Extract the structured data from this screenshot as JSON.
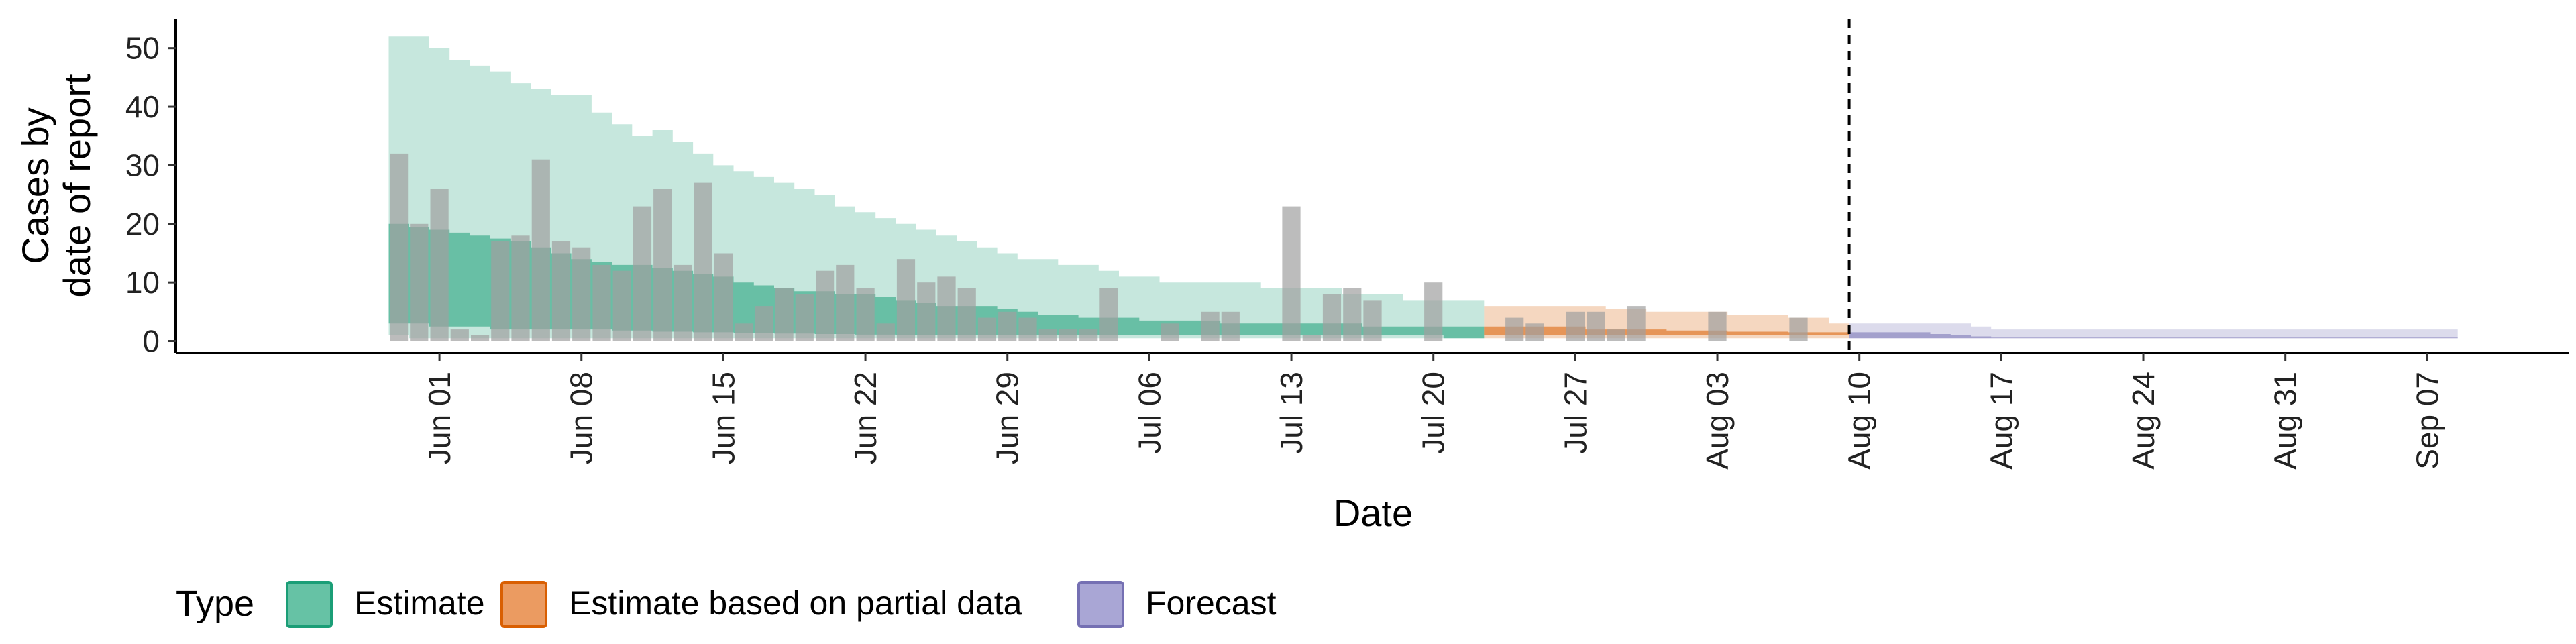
{
  "chart_data": {
    "type": "bar",
    "xlabel": "Date",
    "ylabel_lines": [
      "Cases by",
      "date of report"
    ],
    "y_ticks": [
      0,
      10,
      20,
      30,
      40,
      50
    ],
    "ylim": [
      -2,
      55
    ],
    "xlim": [
      "2020-05-19",
      "2020-09-14"
    ],
    "x_ticks": [
      {
        "date": "2020-06-01",
        "label": "Jun 01"
      },
      {
        "date": "2020-06-08",
        "label": "Jun 08"
      },
      {
        "date": "2020-06-15",
        "label": "Jun 15"
      },
      {
        "date": "2020-06-22",
        "label": "Jun 22"
      },
      {
        "date": "2020-06-29",
        "label": "Jun 29"
      },
      {
        "date": "2020-07-06",
        "label": "Jul 06"
      },
      {
        "date": "2020-07-13",
        "label": "Jul 13"
      },
      {
        "date": "2020-07-20",
        "label": "Jul 20"
      },
      {
        "date": "2020-07-27",
        "label": "Jul 27"
      },
      {
        "date": "2020-08-03",
        "label": "Aug 03"
      },
      {
        "date": "2020-08-10",
        "label": "Aug 10"
      },
      {
        "date": "2020-08-17",
        "label": "Aug 17"
      },
      {
        "date": "2020-08-24",
        "label": "Aug 24"
      },
      {
        "date": "2020-08-31",
        "label": "Aug 31"
      },
      {
        "date": "2020-09-07",
        "label": "Sep 07"
      }
    ],
    "forecast_date_line": "2020-08-09",
    "reported_cases": {
      "dates": [
        "2020-05-30",
        "2020-05-31",
        "2020-06-01",
        "2020-06-02",
        "2020-06-03",
        "2020-06-04",
        "2020-06-05",
        "2020-06-06",
        "2020-06-07",
        "2020-06-08",
        "2020-06-09",
        "2020-06-10",
        "2020-06-11",
        "2020-06-12",
        "2020-06-13",
        "2020-06-14",
        "2020-06-15",
        "2020-06-16",
        "2020-06-17",
        "2020-06-18",
        "2020-06-19",
        "2020-06-20",
        "2020-06-21",
        "2020-06-22",
        "2020-06-23",
        "2020-06-24",
        "2020-06-25",
        "2020-06-26",
        "2020-06-27",
        "2020-06-28",
        "2020-06-29",
        "2020-06-30",
        "2020-07-01",
        "2020-07-02",
        "2020-07-03",
        "2020-07-04",
        "2020-07-05",
        "2020-07-06",
        "2020-07-07",
        "2020-07-08",
        "2020-07-09",
        "2020-07-10",
        "2020-07-11",
        "2020-07-12",
        "2020-07-13",
        "2020-07-14",
        "2020-07-15",
        "2020-07-16",
        "2020-07-17",
        "2020-07-18",
        "2020-07-19",
        "2020-07-20",
        "2020-07-21",
        "2020-07-22",
        "2020-07-23",
        "2020-07-24",
        "2020-07-25",
        "2020-07-26",
        "2020-07-27",
        "2020-07-28",
        "2020-07-29",
        "2020-07-30",
        "2020-07-31",
        "2020-08-01",
        "2020-08-02",
        "2020-08-03",
        "2020-08-04",
        "2020-08-05",
        "2020-08-06",
        "2020-08-07",
        "2020-08-08"
      ],
      "values": [
        32,
        20,
        26,
        2,
        1,
        17,
        18,
        31,
        17,
        16,
        13,
        12,
        23,
        26,
        13,
        27,
        15,
        3,
        6,
        9,
        8,
        12,
        13,
        9,
        3,
        14,
        10,
        11,
        9,
        4,
        5,
        4,
        2,
        2,
        2,
        9,
        0,
        0,
        3,
        0,
        5,
        5,
        0,
        0,
        23,
        1,
        8,
        9,
        7,
        0,
        0,
        10,
        0,
        0,
        0,
        4,
        3,
        0,
        5,
        5,
        2,
        6,
        0,
        0,
        0,
        5,
        0,
        0,
        0,
        4,
        0
      ]
    },
    "series": [
      {
        "name": "Estimate",
        "color": "#1B9E77",
        "dates": [
          "2020-05-30",
          "2020-05-31",
          "2020-06-01",
          "2020-06-02",
          "2020-06-03",
          "2020-06-04",
          "2020-06-05",
          "2020-06-06",
          "2020-06-07",
          "2020-06-08",
          "2020-06-09",
          "2020-06-10",
          "2020-06-11",
          "2020-06-12",
          "2020-06-13",
          "2020-06-14",
          "2020-06-15",
          "2020-06-16",
          "2020-06-17",
          "2020-06-18",
          "2020-06-19",
          "2020-06-20",
          "2020-06-21",
          "2020-06-22",
          "2020-06-23",
          "2020-06-24",
          "2020-06-25",
          "2020-06-26",
          "2020-06-27",
          "2020-06-28",
          "2020-06-29",
          "2020-06-30",
          "2020-07-01",
          "2020-07-02",
          "2020-07-03",
          "2020-07-04",
          "2020-07-05",
          "2020-07-06",
          "2020-07-07",
          "2020-07-08",
          "2020-07-09",
          "2020-07-10",
          "2020-07-11",
          "2020-07-12",
          "2020-07-13",
          "2020-07-14",
          "2020-07-15",
          "2020-07-16",
          "2020-07-17",
          "2020-07-18",
          "2020-07-19",
          "2020-07-20",
          "2020-07-21",
          "2020-07-22"
        ],
        "upper_90": [
          52,
          52,
          50,
          48,
          47,
          46,
          44,
          43,
          42,
          42,
          39,
          37,
          35,
          36,
          34,
          32,
          30,
          29,
          28,
          27,
          26,
          25,
          23,
          22,
          21,
          20,
          19,
          18,
          17,
          16,
          15,
          14,
          14,
          13,
          13,
          12,
          11,
          11,
          10,
          10,
          10,
          10,
          10,
          9,
          9,
          9,
          9,
          8,
          8,
          8,
          7,
          7,
          7,
          7
        ],
        "lower_90": [
          1,
          0.5,
          0.5,
          0.5,
          0.5,
          0.5,
          0.5,
          0.5,
          0.5,
          0.5,
          0.5,
          0.5,
          0.5,
          0.5,
          0.5,
          0.5,
          0.5,
          0.5,
          0.5,
          0.5,
          0.5,
          0.5,
          0.5,
          0.5,
          0.5,
          0.5,
          0.5,
          0.5,
          0.5,
          0.5,
          0.5,
          0.5,
          0.5,
          0.5,
          0.5,
          0.5,
          0.5,
          0.5,
          0.5,
          0.5,
          0.5,
          0.5,
          0.5,
          0.5,
          0.5,
          0.5,
          0.5,
          0.5,
          0.5,
          0.5,
          0.5,
          0.5,
          0.5,
          0.5
        ],
        "upper_50": [
          20,
          19.5,
          19,
          18.5,
          18,
          17.5,
          17,
          16,
          15,
          14,
          13.5,
          13,
          13,
          12.5,
          12,
          11.5,
          11,
          10,
          9.5,
          9,
          8.5,
          8.5,
          8,
          8,
          7.5,
          7,
          6.5,
          6,
          6,
          6,
          5.5,
          5,
          4.5,
          4.5,
          4,
          4,
          4,
          3.5,
          3.5,
          3.5,
          3.5,
          3,
          3,
          3,
          3,
          3,
          3,
          3,
          2.5,
          2.5,
          2.5,
          2.5,
          2.5,
          2.5
        ],
        "lower_50": [
          3,
          3,
          2.5,
          2.5,
          2.5,
          2,
          2,
          2,
          2,
          2,
          2,
          1.8,
          1.8,
          1.6,
          1.6,
          1.5,
          1.5,
          1.4,
          1.4,
          1.3,
          1.3,
          1.2,
          1.2,
          1.1,
          1.1,
          1,
          1,
          1,
          1,
          1,
          1,
          1,
          1,
          1,
          1,
          1,
          1,
          1,
          1,
          1,
          1,
          1,
          1,
          1,
          1,
          1,
          1,
          1,
          1,
          1,
          1,
          1,
          0.5,
          0.5
        ]
      },
      {
        "name": "Estimate based on partial data",
        "color": "#D95F02",
        "dates": [
          "2020-07-23",
          "2020-07-24",
          "2020-07-25",
          "2020-07-26",
          "2020-07-27",
          "2020-07-28",
          "2020-07-29",
          "2020-07-30",
          "2020-07-31",
          "2020-08-01",
          "2020-08-02",
          "2020-08-03",
          "2020-08-04",
          "2020-08-05",
          "2020-08-06",
          "2020-08-07",
          "2020-08-08",
          "2020-08-09"
        ],
        "upper_90": [
          6,
          6,
          6,
          6,
          6,
          6,
          5.5,
          5.5,
          5,
          5,
          5,
          5,
          4.5,
          4.5,
          4.5,
          4,
          4,
          3
        ],
        "lower_90": [
          0.5,
          0.5,
          0.5,
          0.5,
          0.5,
          0.5,
          0.5,
          0.5,
          0.5,
          0.5,
          0.5,
          0.5,
          0.5,
          0.5,
          0.5,
          0.5,
          0.5,
          0.5
        ],
        "upper_50": [
          2.5,
          2.5,
          2.5,
          2.5,
          2.5,
          2,
          2,
          2,
          2,
          1.8,
          1.8,
          1.8,
          1.6,
          1.6,
          1.6,
          1.5,
          1.5,
          1.5
        ],
        "lower_50": [
          1,
          1,
          1,
          1,
          1,
          1,
          1,
          1,
          1,
          1,
          1,
          1,
          1,
          1,
          1,
          1,
          1,
          1
        ]
      },
      {
        "name": "Forecast",
        "color": "#7570B3",
        "dates": [
          "2020-08-10",
          "2020-08-11",
          "2020-08-12",
          "2020-08-13",
          "2020-08-14",
          "2020-08-15",
          "2020-08-16",
          "2020-08-17",
          "2020-08-20",
          "2020-08-24",
          "2020-08-28",
          "2020-08-31",
          "2020-09-04",
          "2020-09-08"
        ],
        "upper_90": [
          3,
          3,
          3,
          3,
          3,
          3,
          2.5,
          2,
          2,
          2,
          2,
          2,
          2,
          2
        ],
        "lower_90": [
          0.5,
          0.5,
          0.5,
          0.5,
          0.5,
          0.5,
          0.5,
          0.5,
          0.5,
          0.5,
          0.5,
          0.5,
          0.5,
          0.5
        ],
        "upper_50": [
          1.5,
          1.5,
          1.5,
          1.5,
          1.2,
          1,
          0.8,
          0.6,
          0.6,
          0.6,
          0.6,
          0.6,
          0.6,
          0.6
        ],
        "lower_50": [
          0.5,
          0.5,
          0.5,
          0.5,
          0.5,
          0.5,
          0.5,
          0.5,
          0.5,
          0.5,
          0.5,
          0.5,
          0.5,
          0.5
        ]
      }
    ],
    "legend": {
      "title": "Type",
      "placement": "bottom",
      "items": [
        {
          "label": "Estimate",
          "fill": "#66C2A5",
          "stroke": "#1B9E77"
        },
        {
          "label": "Estimate based on partial data",
          "fill": "#EB9B61",
          "stroke": "#D95F02"
        },
        {
          "label": "Forecast",
          "fill": "#A9A6D5",
          "stroke": "#7570B3"
        }
      ]
    },
    "bar_color": "#A0A0A0",
    "grid": false
  }
}
